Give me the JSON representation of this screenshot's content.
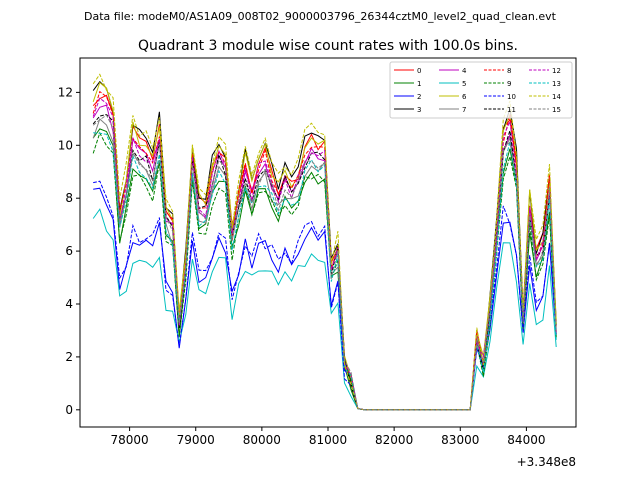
{
  "suptitle": "Data file: modeM0/AS1A09_008T02_9000003796_26344cztM0_level2_quad_clean.evt",
  "chart_data": {
    "type": "line",
    "title": "Quadrant 3 module wise count rates with 100.0s bins.",
    "xlabel": "",
    "ylabel": "",
    "x_offset_label": "+3.348e8",
    "x_offset_value": 334800000,
    "xlim": [
      77250,
      84750
    ],
    "ylim": [
      -0.65,
      13.3
    ],
    "xticks": [
      78000,
      79000,
      80000,
      81000,
      82000,
      83000,
      84000
    ],
    "xtick_labels": [
      "78000",
      "79000",
      "80000",
      "81000",
      "82000",
      "83000",
      "84000"
    ],
    "yticks": [
      0,
      2,
      4,
      6,
      8,
      10,
      12
    ],
    "ytick_labels": [
      "0",
      "2",
      "4",
      "6",
      "8",
      "10",
      "12"
    ],
    "grid": false,
    "legend_position": "top-right",
    "x_start": 77450,
    "x_step": 100,
    "n_points": 71,
    "series": [
      {
        "name": "0",
        "color": "#ff0000",
        "dash": "solid",
        "scale": 1.0,
        "low": 0,
        "seed": 1
      },
      {
        "name": "1",
        "color": "#008000",
        "dash": "solid",
        "scale": 0.87,
        "low": 0,
        "seed": 2
      },
      {
        "name": "2",
        "color": "#0000ff",
        "dash": "solid",
        "scale": 0.66,
        "low": 1,
        "seed": 3
      },
      {
        "name": "3",
        "color": "#000000",
        "dash": "solid",
        "scale": 1.02,
        "low": 0,
        "seed": 4
      },
      {
        "name": "4",
        "color": "#bf00bf",
        "dash": "solid",
        "scale": 0.95,
        "low": 0,
        "seed": 5
      },
      {
        "name": "5",
        "color": "#00bfbf",
        "dash": "solid",
        "scale": 0.58,
        "low": 1,
        "seed": 6
      },
      {
        "name": "6",
        "color": "#bfbf00",
        "dash": "solid",
        "scale": 1.01,
        "low": 0,
        "seed": 7
      },
      {
        "name": "7",
        "color": "#808080",
        "dash": "solid",
        "scale": 0.9,
        "low": 0,
        "seed": 8
      },
      {
        "name": "8",
        "color": "#ff0000",
        "dash": "dashed",
        "scale": 0.98,
        "low": 0,
        "seed": 9
      },
      {
        "name": "9",
        "color": "#008000",
        "dash": "dashed",
        "scale": 0.86,
        "low": 0,
        "seed": 10
      },
      {
        "name": "10",
        "color": "#0000ff",
        "dash": "dashed",
        "scale": 0.68,
        "low": 1,
        "seed": 11
      },
      {
        "name": "11",
        "color": "#000000",
        "dash": "dashed",
        "scale": 0.94,
        "low": 0,
        "seed": 12
      },
      {
        "name": "12",
        "color": "#bf00bf",
        "dash": "dashed",
        "scale": 0.96,
        "low": 0,
        "seed": 13
      },
      {
        "name": "13",
        "color": "#00bfbf",
        "dash": "dashed",
        "scale": 0.89,
        "low": 0,
        "seed": 14
      },
      {
        "name": "14",
        "color": "#bfbf00",
        "dash": "dashed",
        "scale": 1.04,
        "low": 0,
        "seed": 15
      },
      {
        "name": "15",
        "color": "#808080",
        "dash": "dashed",
        "scale": 0.93,
        "low": 0,
        "seed": 16
      }
    ],
    "base_profile": [
      11.6,
      12.0,
      11.9,
      11.3,
      7.5,
      8.8,
      10.5,
      10.1,
      10.0,
      9.5,
      10.8,
      7.6,
      7.2,
      3.5,
      5.8,
      9.8,
      8.0,
      7.9,
      9.2,
      10.0,
      9.6,
      6.8,
      8.2,
      9.5,
      8.5,
      9.4,
      9.8,
      8.9,
      8.4,
      9.1,
      8.6,
      9.0,
      10.0,
      10.4,
      10.1,
      10.2,
      5.5,
      6.3,
      1.8,
      1.2,
      0.05,
      0.0,
      0.0,
      0.0,
      0.0,
      0.0,
      0.0,
      0.0,
      0.0,
      0.0,
      0.0,
      0.0,
      0.0,
      0.0,
      0.0,
      0.0,
      0.0,
      0.0,
      2.8,
      1.8,
      4.0,
      7.0,
      10.5,
      11.2,
      9.5,
      3.6,
      8.0,
      6.0,
      6.5,
      8.8,
      3.2
    ],
    "low_profile": [
      8.2,
      8.3,
      7.6,
      7.2,
      4.6,
      5.4,
      6.5,
      6.3,
      6.2,
      6.4,
      6.8,
      4.6,
      4.4,
      2.6,
      3.9,
      6.4,
      4.9,
      5.2,
      5.8,
      6.3,
      6.2,
      4.2,
      5.3,
      6.2,
      5.6,
      6.3,
      6.2,
      5.8,
      5.4,
      5.9,
      5.6,
      6.0,
      6.5,
      6.9,
      6.6,
      6.6,
      4.0,
      4.8,
      1.3,
      0.9,
      0.05,
      0.0,
      0.0,
      0.0,
      0.0,
      0.0,
      0.0,
      0.0,
      0.0,
      0.0,
      0.0,
      0.0,
      0.0,
      0.0,
      0.0,
      0.0,
      0.0,
      0.0,
      2.2,
      1.4,
      3.0,
      5.0,
      7.2,
      7.0,
      5.8,
      3.0,
      5.6,
      4.0,
      4.0,
      6.4,
      2.8
    ]
  }
}
